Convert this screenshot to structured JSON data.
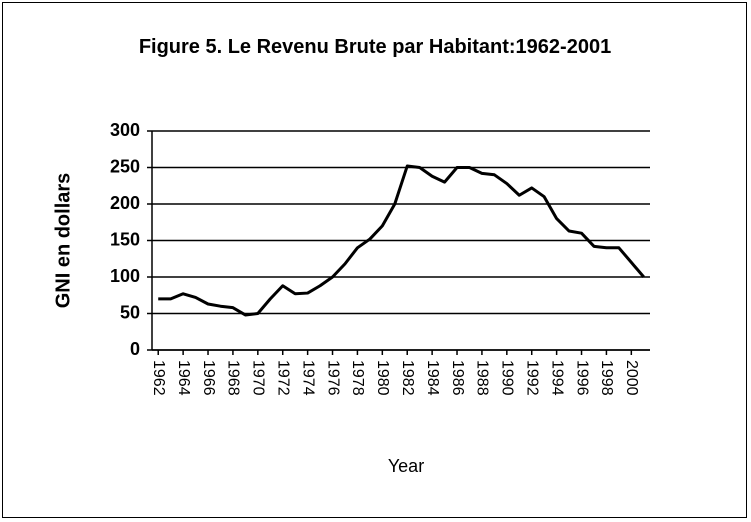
{
  "chart_data": {
    "type": "line",
    "title": "Figure 5. Le Revenu Brute par Habitant:1962-2001",
    "x_label": "Year",
    "y_label": "GNI en dollars",
    "x": [
      1962,
      1963,
      1964,
      1965,
      1966,
      1967,
      1968,
      1969,
      1970,
      1971,
      1972,
      1973,
      1974,
      1975,
      1976,
      1977,
      1978,
      1979,
      1980,
      1981,
      1982,
      1983,
      1984,
      1985,
      1986,
      1987,
      1988,
      1989,
      1990,
      1991,
      1992,
      1993,
      1994,
      1995,
      1996,
      1997,
      1998,
      1999,
      2000,
      2001
    ],
    "series": [
      {
        "name": "GNI",
        "color": "#000000",
        "values": [
          70,
          70,
          77,
          72,
          63,
          60,
          58,
          48,
          50,
          70,
          88,
          77,
          78,
          88,
          100,
          118,
          140,
          152,
          170,
          200,
          252,
          250,
          238,
          230,
          250,
          250,
          242,
          240,
          228,
          212,
          222,
          210,
          180,
          163,
          160,
          142,
          140,
          140,
          120,
          100
        ]
      }
    ],
    "xlim": [
      1961.5,
      2001.5
    ],
    "xticks": [
      1962,
      1964,
      1966,
      1968,
      1970,
      1972,
      1974,
      1976,
      1978,
      1980,
      1982,
      1984,
      1986,
      1988,
      1990,
      1992,
      1994,
      1996,
      1998,
      2000
    ],
    "ylim": [
      0,
      300
    ],
    "yticks": [
      0,
      50,
      100,
      150,
      200,
      250,
      300
    ],
    "grid": true
  }
}
